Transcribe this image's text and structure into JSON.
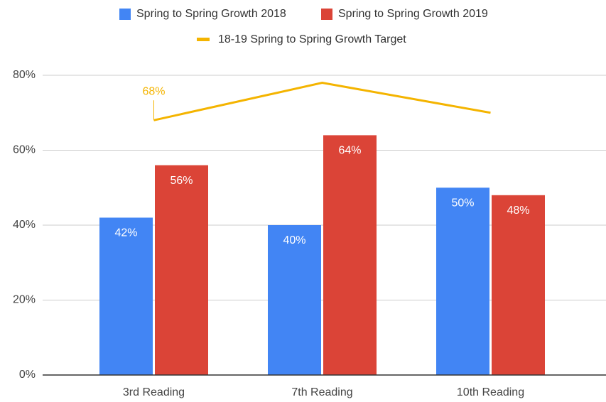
{
  "chart_data": {
    "type": "bar",
    "categories": [
      "3rd Reading",
      "7th Reading",
      "10th Reading"
    ],
    "series": [
      {
        "name": "Spring to Spring Growth 2018",
        "color": "#4285f4",
        "values": [
          42,
          40,
          50
        ],
        "value_labels": [
          "42%",
          "40%",
          "50%"
        ]
      },
      {
        "name": "Spring to Spring Growth 2019",
        "color": "#db4437",
        "values": [
          56,
          64,
          48
        ],
        "value_labels": [
          "56%",
          "64%",
          "48%"
        ]
      },
      {
        "name": "18-19 Spring to Spring Growth Target",
        "type": "line",
        "color": "#f4b400",
        "values": [
          68,
          78,
          70
        ],
        "value_labels": [
          "68%",
          null,
          null
        ]
      }
    ],
    "ylim": [
      0,
      80
    ],
    "yticks": [
      {
        "value": 0,
        "label": "0%"
      },
      {
        "value": 20,
        "label": "20%"
      },
      {
        "value": 40,
        "label": "40%"
      },
      {
        "value": 60,
        "label": "60%"
      },
      {
        "value": 80,
        "label": "80%"
      }
    ],
    "grid": true
  }
}
